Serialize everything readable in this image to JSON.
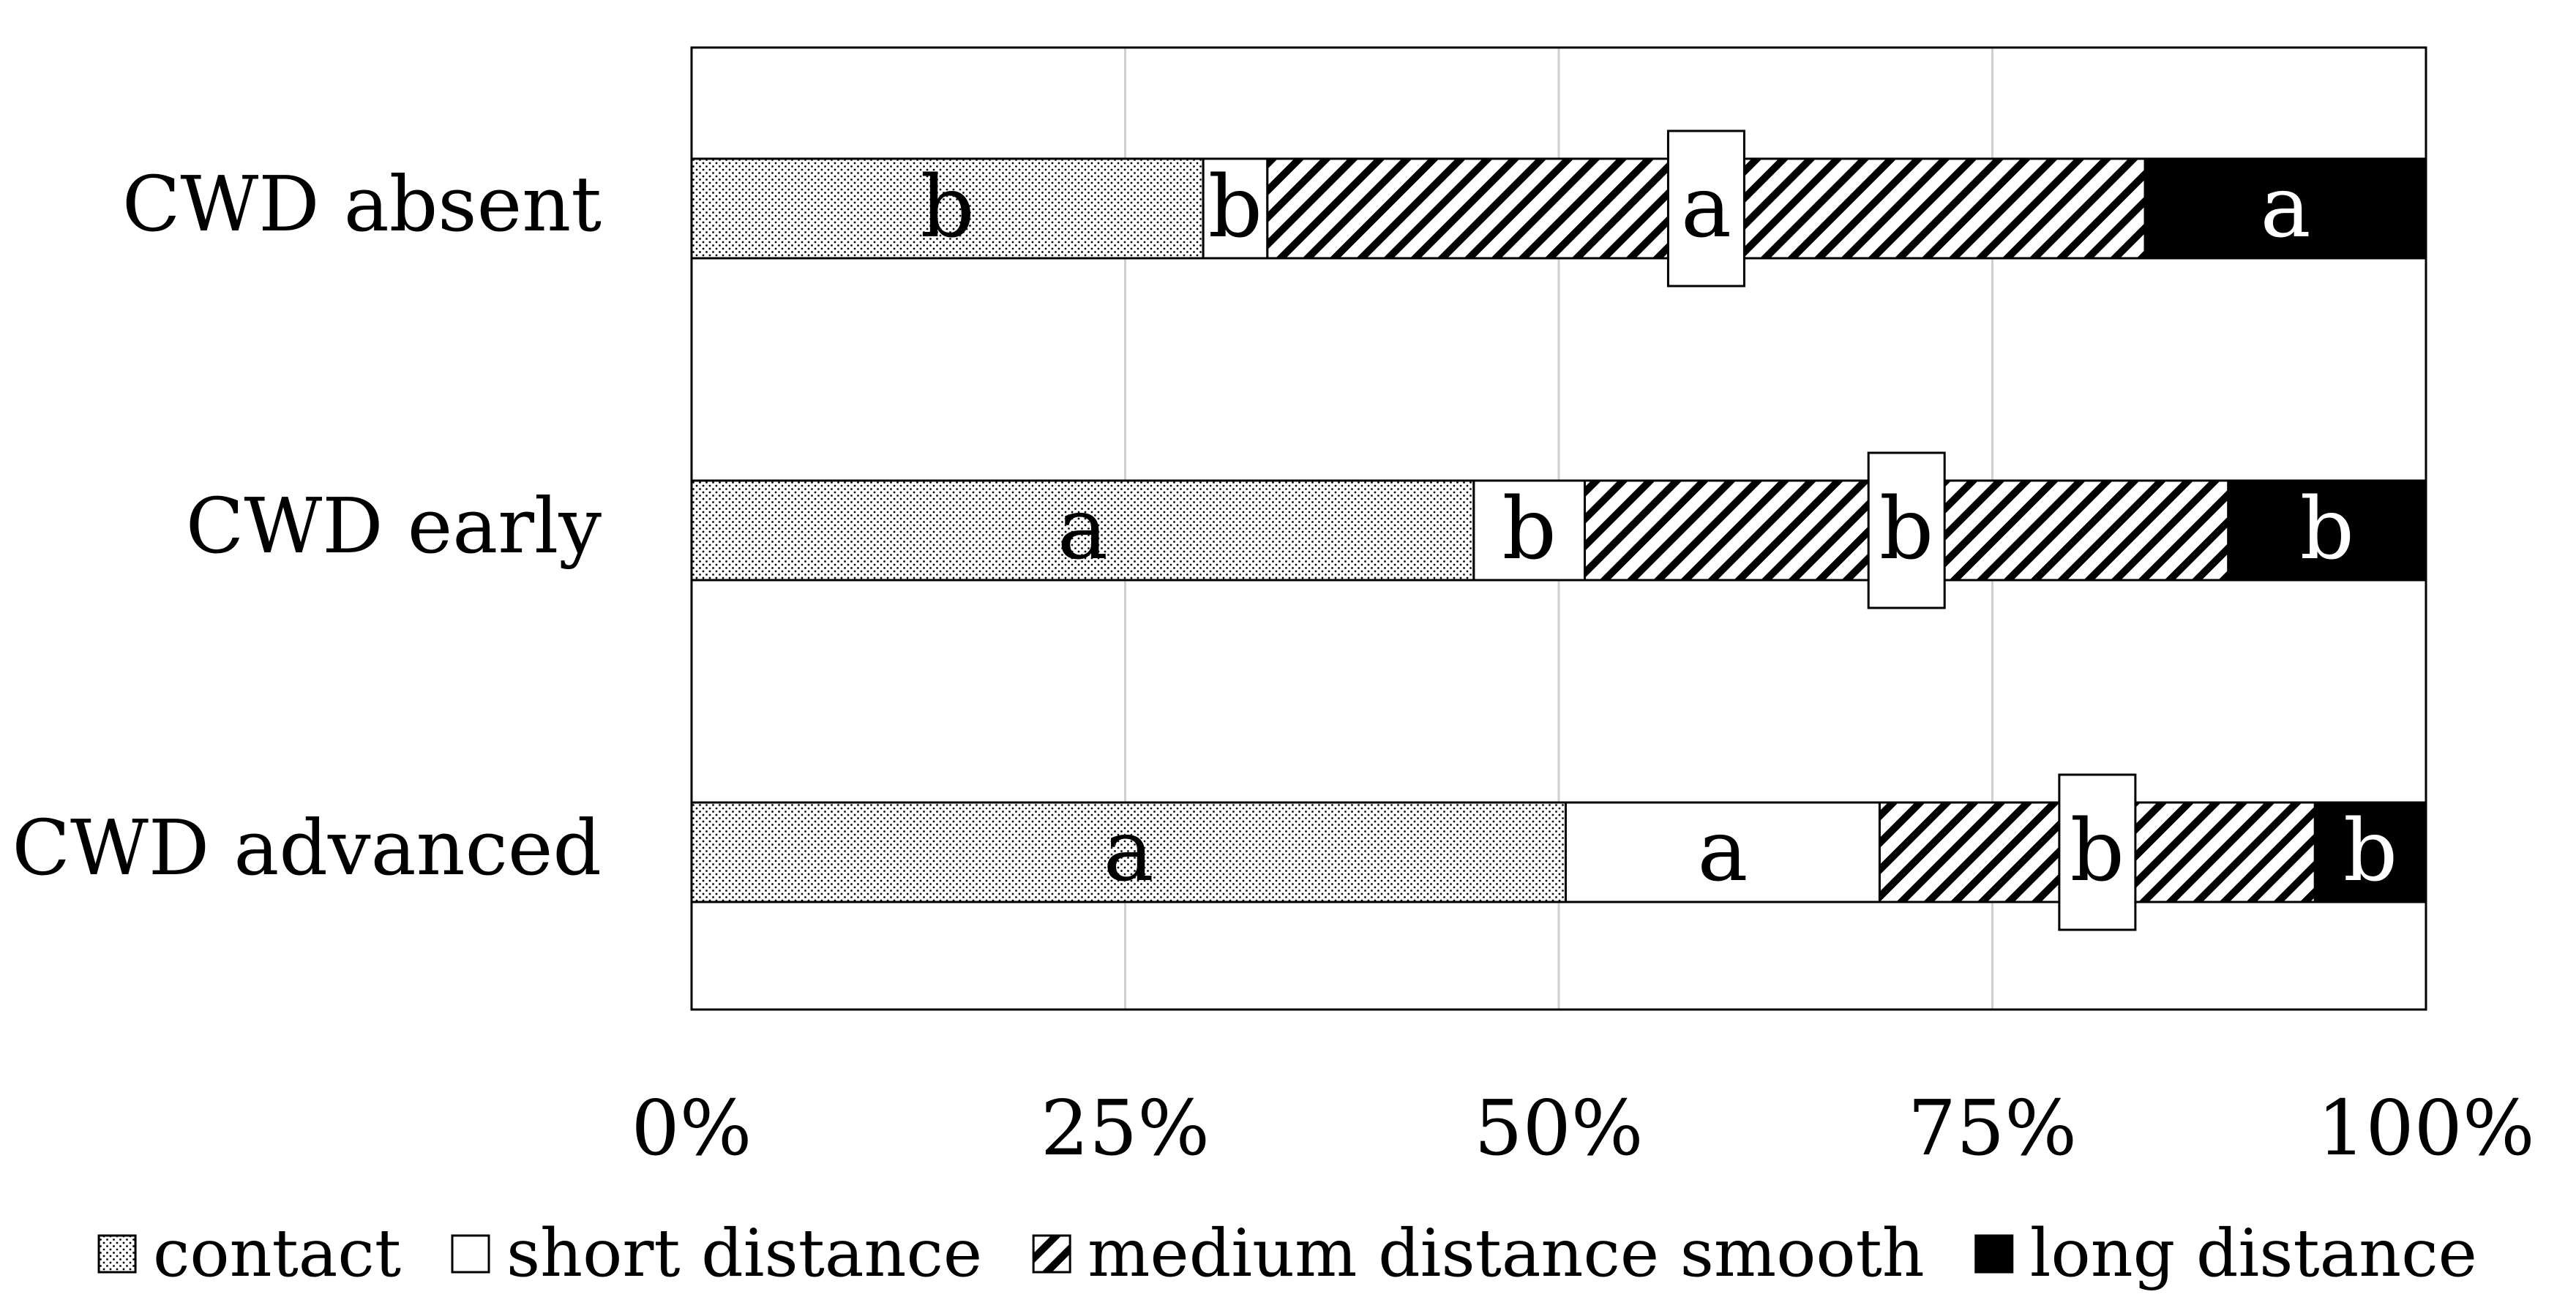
{
  "chart_data": {
    "type": "bar",
    "stacked": "percent",
    "orientation": "horizontal",
    "title": "",
    "xlabel": "",
    "ylabel": "",
    "xlim": [
      0,
      100
    ],
    "x_ticks": [
      "0%",
      "25%",
      "50%",
      "75%",
      "100%"
    ],
    "categories": [
      "CWD absent",
      "CWD early",
      "CWD advanced"
    ],
    "series": [
      {
        "name": "contact",
        "pattern": "dots",
        "color": "#ffffff",
        "values": [
          29.5,
          45.1,
          50.4
        ],
        "letters": [
          "b",
          "a",
          "a"
        ],
        "label_style": "plain"
      },
      {
        "name": "short distance",
        "pattern": "none",
        "color": "#ffffff",
        "values": [
          3.7,
          6.4,
          18.1
        ],
        "letters": [
          "b",
          "b",
          "a"
        ],
        "label_style": "plain"
      },
      {
        "name": "medium distance smooth",
        "pattern": "hatch",
        "color": "#ffffff",
        "values": [
          50.6,
          37.1,
          25.1
        ],
        "letters": [
          "a",
          "b",
          "b"
        ],
        "label_style": "boxed"
      },
      {
        "name": "long distance",
        "pattern": "solid",
        "color": "#000000",
        "values": [
          16.2,
          11.4,
          6.4
        ],
        "letters": [
          "a",
          "b",
          "b"
        ],
        "label_style": "plain"
      }
    ],
    "gridlines": true,
    "legend_position": "bottom"
  }
}
